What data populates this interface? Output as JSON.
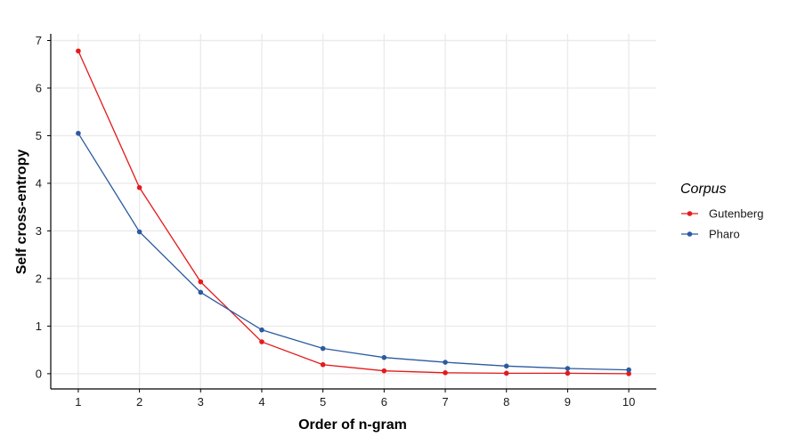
{
  "chart_data": {
    "type": "line",
    "title": "",
    "xlabel": "Order of n-gram",
    "ylabel": "Self cross-entropy",
    "x": [
      1,
      2,
      3,
      4,
      5,
      6,
      7,
      8,
      9,
      10
    ],
    "xticks": [
      "1",
      "2",
      "3",
      "4",
      "5",
      "6",
      "7",
      "8",
      "9",
      "10"
    ],
    "yticks": [
      "0",
      "1",
      "2",
      "3",
      "4",
      "5",
      "6",
      "7"
    ],
    "xlim": [
      0.55,
      10.45
    ],
    "ylim": [
      -0.32,
      7.14
    ],
    "grid": true,
    "legend_title": "Corpus",
    "legend_position": "right",
    "series": [
      {
        "name": "Gutenberg",
        "color": "#e41a1c",
        "values": [
          6.78,
          3.91,
          1.93,
          0.67,
          0.19,
          0.06,
          0.02,
          0.01,
          0.01,
          0.0
        ]
      },
      {
        "name": "Pharo",
        "color": "#2c5aa0",
        "values": [
          5.05,
          2.98,
          1.71,
          0.92,
          0.53,
          0.34,
          0.24,
          0.16,
          0.11,
          0.08
        ]
      }
    ]
  }
}
